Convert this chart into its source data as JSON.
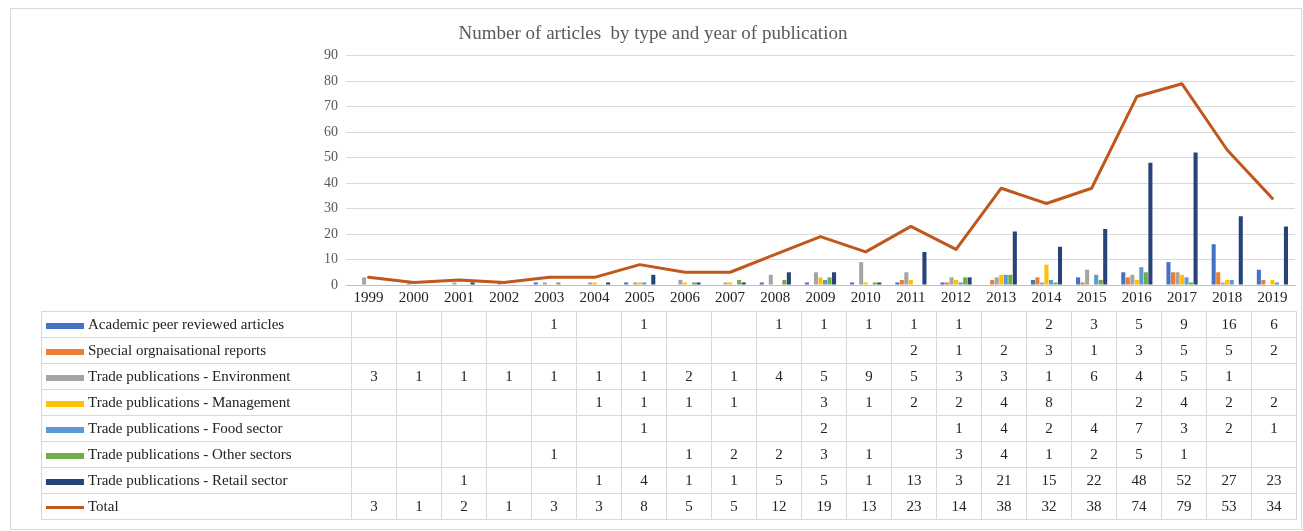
{
  "chart_data": {
    "type": "bar",
    "title": "Number of articles  by type and year of publication",
    "categories": [
      "1999",
      "2000",
      "2001",
      "2002",
      "2003",
      "2004",
      "2005",
      "2006",
      "2007",
      "2008",
      "2009",
      "2010",
      "2011",
      "2012",
      "2013",
      "2014",
      "2015",
      "2016",
      "2017",
      "2018",
      "2019"
    ],
    "series": [
      {
        "name": "Academic peer reviewed articles",
        "color": "#4472c4",
        "values": [
          null,
          null,
          null,
          null,
          1,
          null,
          1,
          null,
          null,
          1,
          1,
          1,
          1,
          1,
          null,
          2,
          3,
          5,
          9,
          16,
          6
        ]
      },
      {
        "name": "Special orgnaisational reports",
        "color": "#ed7d31",
        "values": [
          null,
          null,
          null,
          null,
          null,
          null,
          null,
          null,
          null,
          null,
          null,
          null,
          2,
          1,
          2,
          3,
          1,
          3,
          5,
          5,
          2
        ]
      },
      {
        "name": "Trade publications - Environment",
        "color": "#a5a5a5",
        "values": [
          3,
          1,
          1,
          1,
          1,
          1,
          1,
          2,
          1,
          4,
          5,
          9,
          5,
          3,
          3,
          1,
          6,
          4,
          5,
          1,
          null
        ]
      },
      {
        "name": "Trade publications - Management",
        "color": "#ffc000",
        "values": [
          null,
          null,
          null,
          null,
          null,
          1,
          1,
          1,
          1,
          null,
          3,
          1,
          2,
          2,
          4,
          8,
          null,
          2,
          4,
          2,
          2
        ]
      },
      {
        "name": "Trade publications - Food sector",
        "color": "#5b9bd5",
        "values": [
          null,
          null,
          null,
          null,
          null,
          null,
          1,
          null,
          null,
          null,
          2,
          null,
          null,
          1,
          4,
          2,
          4,
          7,
          3,
          2,
          1
        ]
      },
      {
        "name": "Trade publications - Other sectors",
        "color": "#70ad47",
        "values": [
          null,
          null,
          null,
          null,
          1,
          null,
          null,
          1,
          2,
          2,
          3,
          1,
          null,
          3,
          4,
          1,
          2,
          5,
          1,
          null,
          null
        ]
      },
      {
        "name": "Trade publications - Retail sector",
        "color": "#264478",
        "values": [
          null,
          null,
          1,
          null,
          null,
          1,
          4,
          1,
          1,
          5,
          5,
          1,
          13,
          3,
          21,
          15,
          22,
          48,
          52,
          27,
          23
        ]
      },
      {
        "name": "Total",
        "type": "line",
        "color": "#c0571c",
        "values": [
          3,
          1,
          2,
          1,
          3,
          3,
          8,
          5,
          5,
          12,
          19,
          13,
          23,
          14,
          38,
          32,
          38,
          74,
          79,
          53,
          34
        ]
      }
    ],
    "ylim": [
      0,
      90
    ],
    "yticks": [
      0,
      10,
      20,
      30,
      40,
      50,
      60,
      70,
      80,
      90
    ],
    "grid": "y",
    "legend": "bottom",
    "data_labels": true,
    "marker": "none",
    "line_style": "solid"
  }
}
